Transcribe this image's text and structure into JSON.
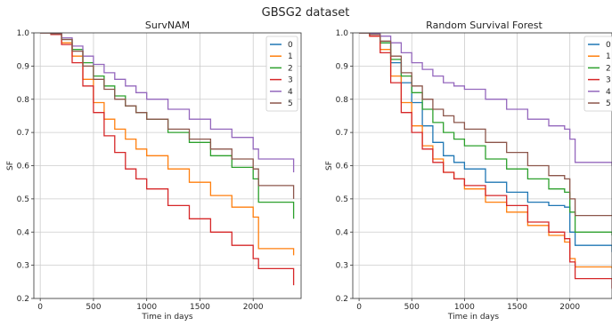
{
  "figure_title": "GBSG2 dataset",
  "chart_data": [
    {
      "type": "line",
      "step": true,
      "title": "SurvNAM",
      "xlabel": "Time in days",
      "ylabel": "SF",
      "xlim": [
        -60,
        2450
      ],
      "ylim": [
        0.2,
        1.0
      ],
      "xticks": [
        0,
        500,
        1000,
        1500,
        2000
      ],
      "yticks": [
        0.2,
        0.3,
        0.4,
        0.5,
        0.6,
        0.7,
        0.8,
        0.9,
        1.0
      ],
      "grid": true,
      "legend_position": "top-right",
      "series": [
        {
          "name": "0",
          "color": "#1f77b4",
          "x": [],
          "y": []
        },
        {
          "name": "1",
          "color": "#ff7f0e",
          "x": [
            0,
            100,
            200,
            300,
            400,
            500,
            600,
            700,
            800,
            900,
            1000,
            1200,
            1400,
            1600,
            1800,
            2000,
            2050,
            2380
          ],
          "y": [
            1.0,
            0.995,
            0.97,
            0.93,
            0.86,
            0.79,
            0.74,
            0.71,
            0.68,
            0.65,
            0.63,
            0.59,
            0.55,
            0.51,
            0.475,
            0.445,
            0.35,
            0.33
          ]
        },
        {
          "name": "2",
          "color": "#2ca02c",
          "x": [
            0,
            100,
            200,
            300,
            400,
            500,
            600,
            700,
            800,
            900,
            1000,
            1200,
            1400,
            1600,
            1800,
            2000,
            2050,
            2380
          ],
          "y": [
            1.0,
            0.997,
            0.98,
            0.95,
            0.91,
            0.87,
            0.84,
            0.81,
            0.78,
            0.76,
            0.74,
            0.7,
            0.67,
            0.63,
            0.595,
            0.56,
            0.49,
            0.44
          ]
        },
        {
          "name": "3",
          "color": "#d62728",
          "x": [
            0,
            100,
            200,
            300,
            400,
            500,
            600,
            700,
            800,
            900,
            1000,
            1200,
            1400,
            1600,
            1800,
            2000,
            2050,
            2380
          ],
          "y": [
            1.0,
            0.995,
            0.965,
            0.91,
            0.84,
            0.76,
            0.69,
            0.64,
            0.59,
            0.56,
            0.53,
            0.48,
            0.44,
            0.4,
            0.36,
            0.32,
            0.29,
            0.24
          ]
        },
        {
          "name": "4",
          "color": "#9467bd",
          "x": [
            0,
            100,
            200,
            300,
            400,
            500,
            600,
            700,
            800,
            900,
            1000,
            1200,
            1400,
            1600,
            1800,
            2000,
            2050,
            2380
          ],
          "y": [
            1.0,
            0.998,
            0.985,
            0.96,
            0.93,
            0.905,
            0.88,
            0.86,
            0.84,
            0.82,
            0.8,
            0.77,
            0.74,
            0.71,
            0.685,
            0.65,
            0.62,
            0.58
          ]
        },
        {
          "name": "5",
          "color": "#8c564b",
          "x": [
            0,
            100,
            200,
            300,
            400,
            500,
            600,
            700,
            800,
            900,
            1000,
            1200,
            1400,
            1600,
            1800,
            2000,
            2050,
            2380
          ],
          "y": [
            1.0,
            0.997,
            0.98,
            0.945,
            0.9,
            0.86,
            0.83,
            0.8,
            0.78,
            0.76,
            0.74,
            0.71,
            0.68,
            0.65,
            0.62,
            0.59,
            0.54,
            0.5
          ]
        }
      ]
    },
    {
      "type": "line",
      "step": true,
      "title": "Random Survival Forest",
      "xlabel": "Time in days",
      "ylabel": "SF",
      "xlim": [
        -60,
        2400
      ],
      "ylim": [
        0.2,
        1.0
      ],
      "xticks": [
        0,
        500,
        1000,
        1500,
        2000
      ],
      "yticks": [
        0.2,
        0.3,
        0.4,
        0.5,
        0.6,
        0.7,
        0.8,
        0.9,
        1.0
      ],
      "grid": true,
      "legend_position": "top-right",
      "series": [
        {
          "name": "0",
          "color": "#1f77b4",
          "x": [
            0,
            100,
            200,
            300,
            400,
            500,
            600,
            700,
            800,
            900,
            1000,
            1200,
            1400,
            1600,
            1800,
            1950,
            2000,
            2050,
            2400
          ],
          "y": [
            1.0,
            0.995,
            0.97,
            0.91,
            0.85,
            0.79,
            0.72,
            0.67,
            0.63,
            0.61,
            0.59,
            0.55,
            0.52,
            0.49,
            0.48,
            0.475,
            0.4,
            0.36,
            0.34
          ]
        },
        {
          "name": "1",
          "color": "#ff7f0e",
          "x": [
            0,
            100,
            200,
            300,
            400,
            500,
            600,
            700,
            800,
            900,
            1000,
            1200,
            1400,
            1600,
            1800,
            1950,
            2000,
            2050,
            2400
          ],
          "y": [
            1.0,
            0.99,
            0.95,
            0.87,
            0.79,
            0.72,
            0.66,
            0.62,
            0.58,
            0.56,
            0.53,
            0.49,
            0.46,
            0.42,
            0.39,
            0.37,
            0.32,
            0.295,
            0.29
          ]
        },
        {
          "name": "2",
          "color": "#2ca02c",
          "x": [
            0,
            100,
            200,
            300,
            400,
            500,
            600,
            700,
            800,
            900,
            1000,
            1200,
            1400,
            1600,
            1800,
            1950,
            2000,
            2050,
            2400
          ],
          "y": [
            1.0,
            0.995,
            0.97,
            0.92,
            0.87,
            0.82,
            0.77,
            0.73,
            0.7,
            0.68,
            0.66,
            0.62,
            0.59,
            0.56,
            0.53,
            0.52,
            0.46,
            0.4,
            0.39
          ]
        },
        {
          "name": "3",
          "color": "#d62728",
          "x": [
            0,
            100,
            200,
            300,
            400,
            500,
            600,
            700,
            800,
            900,
            1000,
            1200,
            1400,
            1600,
            1800,
            1950,
            2000,
            2050,
            2400
          ],
          "y": [
            1.0,
            0.99,
            0.94,
            0.85,
            0.76,
            0.7,
            0.65,
            0.61,
            0.58,
            0.56,
            0.54,
            0.51,
            0.48,
            0.43,
            0.4,
            0.38,
            0.31,
            0.26,
            0.23
          ]
        },
        {
          "name": "4",
          "color": "#9467bd",
          "x": [
            0,
            100,
            200,
            300,
            400,
            500,
            600,
            700,
            800,
            900,
            1000,
            1200,
            1400,
            1600,
            1800,
            1950,
            2000,
            2050,
            2400
          ],
          "y": [
            1.0,
            0.998,
            0.99,
            0.97,
            0.94,
            0.91,
            0.89,
            0.87,
            0.85,
            0.84,
            0.83,
            0.8,
            0.77,
            0.74,
            0.72,
            0.71,
            0.68,
            0.61,
            0.6
          ]
        },
        {
          "name": "5",
          "color": "#8c564b",
          "x": [
            0,
            100,
            200,
            300,
            400,
            500,
            600,
            700,
            800,
            900,
            1000,
            1200,
            1400,
            1600,
            1800,
            1950,
            2000,
            2050,
            2400
          ],
          "y": [
            1.0,
            0.995,
            0.975,
            0.93,
            0.88,
            0.84,
            0.8,
            0.77,
            0.75,
            0.73,
            0.71,
            0.67,
            0.64,
            0.6,
            0.57,
            0.56,
            0.5,
            0.45,
            0.45
          ]
        }
      ]
    }
  ]
}
